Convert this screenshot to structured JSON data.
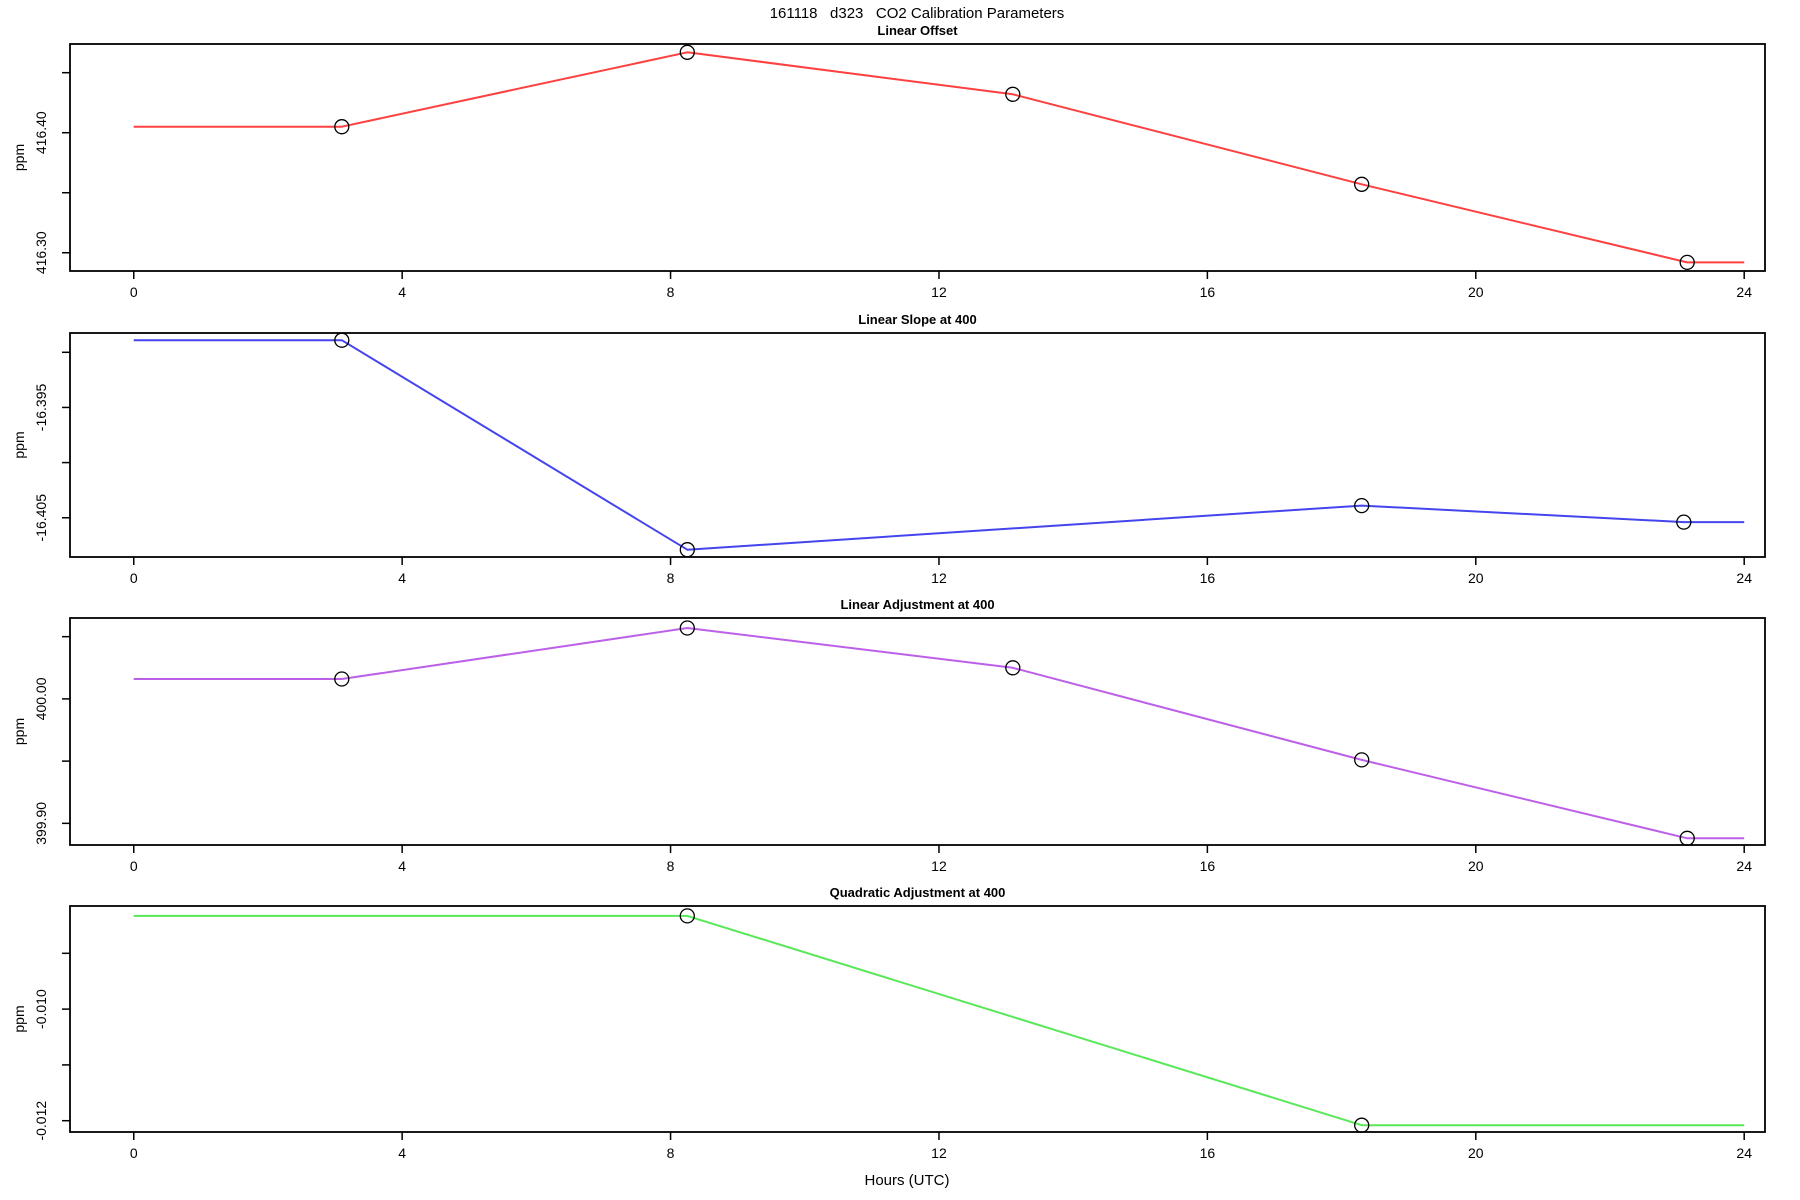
{
  "main_title": "161118   d323   CO2 Calibration Parameters",
  "x_axis": {
    "label": "Hours (UTC)",
    "xlim": [
      -0.95,
      24.31
    ],
    "ticks": [
      {
        "v": 0,
        "label": "0"
      },
      {
        "v": 4,
        "label": "4"
      },
      {
        "v": 8,
        "label": "8"
      },
      {
        "v": 12,
        "label": "12"
      },
      {
        "v": 16,
        "label": "16"
      },
      {
        "v": 20,
        "label": "20"
      },
      {
        "v": 24,
        "label": "24"
      }
    ]
  },
  "chart_data": [
    {
      "type": "line",
      "title": "Linear Offset",
      "ylabel": "ppm",
      "color": "#ff4040",
      "ylim": [
        416.2848,
        416.4739
      ],
      "yticks": [
        {
          "v": 416.3,
          "label": "416.30"
        },
        {
          "v": 416.35,
          "label": ""
        },
        {
          "v": 416.4,
          "label": "416.40"
        },
        {
          "v": 416.45,
          "label": ""
        }
      ],
      "line": [
        [
          0,
          416.405
        ],
        [
          3.1,
          416.405
        ],
        [
          8.25,
          416.467
        ],
        [
          13.1,
          416.432
        ],
        [
          18.3,
          416.357
        ],
        [
          23.15,
          416.292
        ],
        [
          24,
          416.292
        ]
      ],
      "points": [
        [
          3.1,
          416.405
        ],
        [
          8.25,
          416.467
        ],
        [
          13.1,
          416.432
        ],
        [
          18.3,
          416.357
        ],
        [
          23.15,
          416.292
        ]
      ]
    },
    {
      "type": "line",
      "title": "Linear Slope at 400",
      "ylabel": "ppm",
      "color": "#4545ee",
      "ylim": [
        -16.40856,
        -16.38825
      ],
      "yticks": [
        {
          "v": -16.405,
          "label": "-16.405"
        },
        {
          "v": -16.4,
          "label": ""
        },
        {
          "v": -16.395,
          "label": "-16.395"
        },
        {
          "v": -16.39,
          "label": ""
        }
      ],
      "line": [
        [
          0,
          -16.3889
        ],
        [
          3.1,
          -16.3889
        ],
        [
          8.25,
          -16.4079
        ],
        [
          18.3,
          -16.4039
        ],
        [
          23.1,
          -16.4054
        ],
        [
          24,
          -16.4054
        ]
      ],
      "points": [
        [
          3.1,
          -16.3889
        ],
        [
          8.25,
          -16.4079
        ],
        [
          18.3,
          -16.4039
        ],
        [
          23.1,
          -16.4054
        ]
      ]
    },
    {
      "type": "line",
      "title": "Linear Adjustment at 400",
      "ylabel": "ppm",
      "color": "#bd60e8",
      "ylim": [
        399.8826,
        400.065
      ],
      "yticks": [
        {
          "v": 399.9,
          "label": "399.90"
        },
        {
          "v": 399.95,
          "label": ""
        },
        {
          "v": 400.0,
          "label": "400.00"
        },
        {
          "v": 400.05,
          "label": ""
        }
      ],
      "line": [
        [
          0,
          400.016
        ],
        [
          3.1,
          400.016
        ],
        [
          8.25,
          400.057
        ],
        [
          13.1,
          400.025
        ],
        [
          18.3,
          399.951
        ],
        [
          23.15,
          399.888
        ],
        [
          24,
          399.888
        ]
      ],
      "points": [
        [
          3.1,
          400.016
        ],
        [
          8.25,
          400.057
        ],
        [
          13.1,
          400.025
        ],
        [
          18.3,
          399.951
        ],
        [
          23.15,
          399.888
        ]
      ]
    },
    {
      "type": "line",
      "title": "Quadratic Adjustment at 400",
      "ylabel": "ppm",
      "color": "#58e858",
      "ylim": [
        -0.0122025,
        -0.008152
      ],
      "yticks": [
        {
          "v": -0.012,
          "label": "-0.012"
        },
        {
          "v": -0.011,
          "label": ""
        },
        {
          "v": -0.01,
          "label": "-0.010"
        },
        {
          "v": -0.009,
          "label": ""
        }
      ],
      "line": [
        [
          0,
          -0.00833
        ],
        [
          8.25,
          -0.00833
        ],
        [
          18.3,
          -0.01208
        ],
        [
          24,
          -0.01208
        ]
      ],
      "points": [
        [
          8.25,
          -0.00833
        ],
        [
          18.3,
          -0.01208
        ]
      ]
    }
  ]
}
